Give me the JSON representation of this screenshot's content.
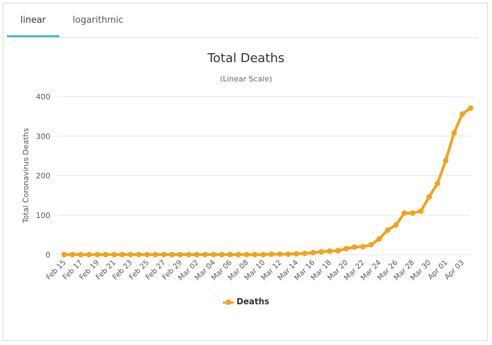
{
  "tabs": [
    {
      "label": "linear",
      "active": true
    },
    {
      "label": "logarithmic",
      "active": false
    }
  ],
  "colors": {
    "series": "#f0a31c",
    "tab_underline": "#4bbcd0",
    "grid": "#e6e6e6"
  },
  "chart_data": {
    "type": "line",
    "title": "Total Deaths",
    "subtitle": "(Linear Scale)",
    "ylabel": "Total Coronavirus Deaths",
    "xlabel": "",
    "ylim": [
      0,
      400
    ],
    "yticks": [
      0,
      100,
      200,
      300,
      400
    ],
    "grid": true,
    "legend_position": "bottom-center",
    "x_tick_labels": [
      "Feb 15",
      "Feb 17",
      "Feb 19",
      "Feb 21",
      "Feb 23",
      "Feb 25",
      "Feb 27",
      "Feb 29",
      "Mar 02",
      "Mar 04",
      "Mar 06",
      "Mar 08",
      "Mar 10",
      "Mar 12",
      "Mar 14",
      "Mar 16",
      "Mar 18",
      "Mar 20",
      "Mar 22",
      "Mar 24",
      "Mar 26",
      "Mar 28",
      "Mar 30",
      "Apr 01",
      "Apr 03"
    ],
    "x": [
      "Feb 15",
      "Feb 16",
      "Feb 17",
      "Feb 18",
      "Feb 19",
      "Feb 20",
      "Feb 21",
      "Feb 22",
      "Feb 23",
      "Feb 24",
      "Feb 25",
      "Feb 26",
      "Feb 27",
      "Feb 28",
      "Feb 29",
      "Mar 01",
      "Mar 02",
      "Mar 03",
      "Mar 04",
      "Mar 05",
      "Mar 06",
      "Mar 07",
      "Mar 08",
      "Mar 09",
      "Mar 10",
      "Mar 11",
      "Mar 12",
      "Mar 13",
      "Mar 14",
      "Mar 15",
      "Mar 16",
      "Mar 17",
      "Mar 18",
      "Mar 19",
      "Mar 20",
      "Mar 21",
      "Mar 22",
      "Mar 23",
      "Mar 24",
      "Mar 25",
      "Mar 26",
      "Mar 27",
      "Mar 28",
      "Mar 29",
      "Mar 30",
      "Mar 31",
      "Apr 01",
      "Apr 02",
      "Apr 03",
      "Apr 04"
    ],
    "series": [
      {
        "name": "Deaths",
        "values": [
          0,
          0,
          0,
          0,
          0,
          0,
          0,
          0,
          0,
          0,
          0,
          0,
          0,
          0,
          0,
          0,
          0,
          0,
          0,
          0,
          0,
          0,
          0,
          0,
          0,
          1,
          1,
          1,
          2,
          3,
          5,
          7,
          9,
          10,
          15,
          19,
          20,
          25,
          40,
          62,
          75,
          105,
          105,
          110,
          146,
          180,
          238,
          308,
          356,
          371
        ]
      }
    ]
  }
}
